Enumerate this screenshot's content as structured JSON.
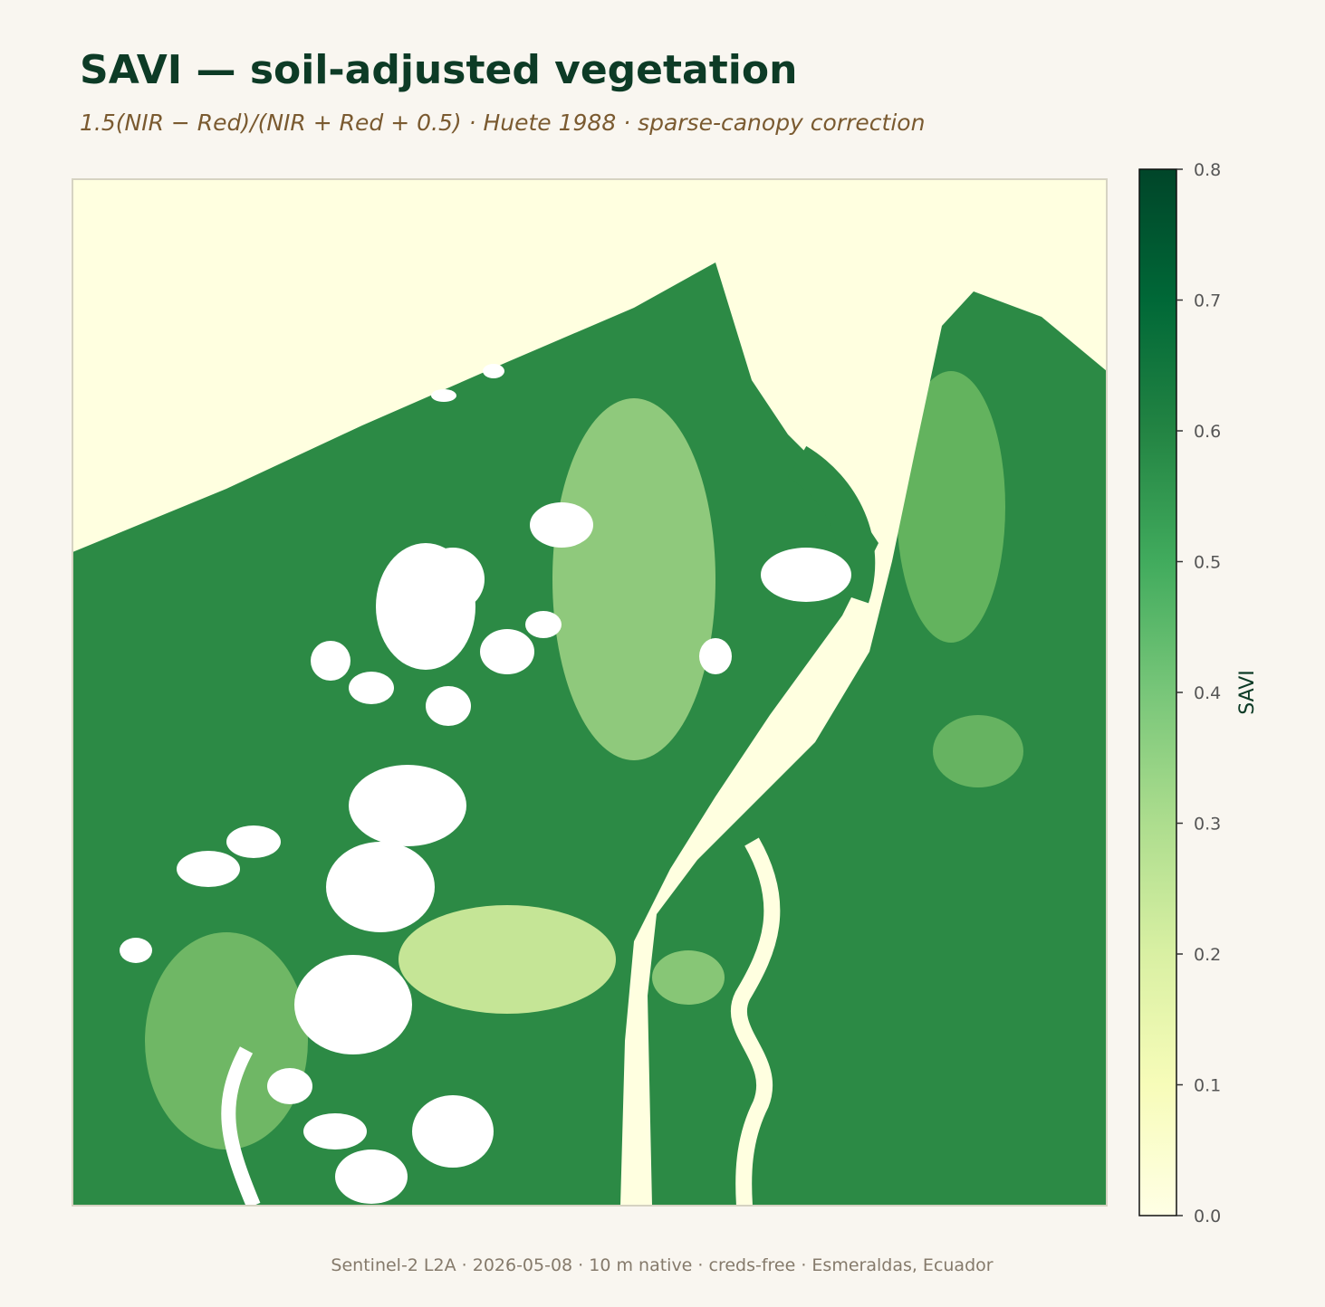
{
  "title": "SAVI — soil-adjusted vegetation",
  "subtitle": "1.5(NIR − Red)/(NIR + Red + 0.5) · Huete 1988 · sparse-canopy correction",
  "footer": "Sentinel-2 L2A · 2026-05-08 · 10 m native · creds-free · Esmeraldas, Ecuador",
  "colorbar": {
    "label": "SAVI",
    "lim": [
      0,
      0.8
    ],
    "ticks": [
      {
        "value": 0,
        "label": "0.0"
      },
      0.1,
      0.2,
      0.3,
      0.4,
      0.5,
      0.6,
      0.7,
      0.8
    ],
    "colors": [
      "#ffffe5",
      "#f7fcb9",
      "#d9f0a3",
      "#addd8e",
      "#78c679",
      "#41ab5d",
      "#238443",
      "#006837",
      "#004529"
    ]
  }
}
